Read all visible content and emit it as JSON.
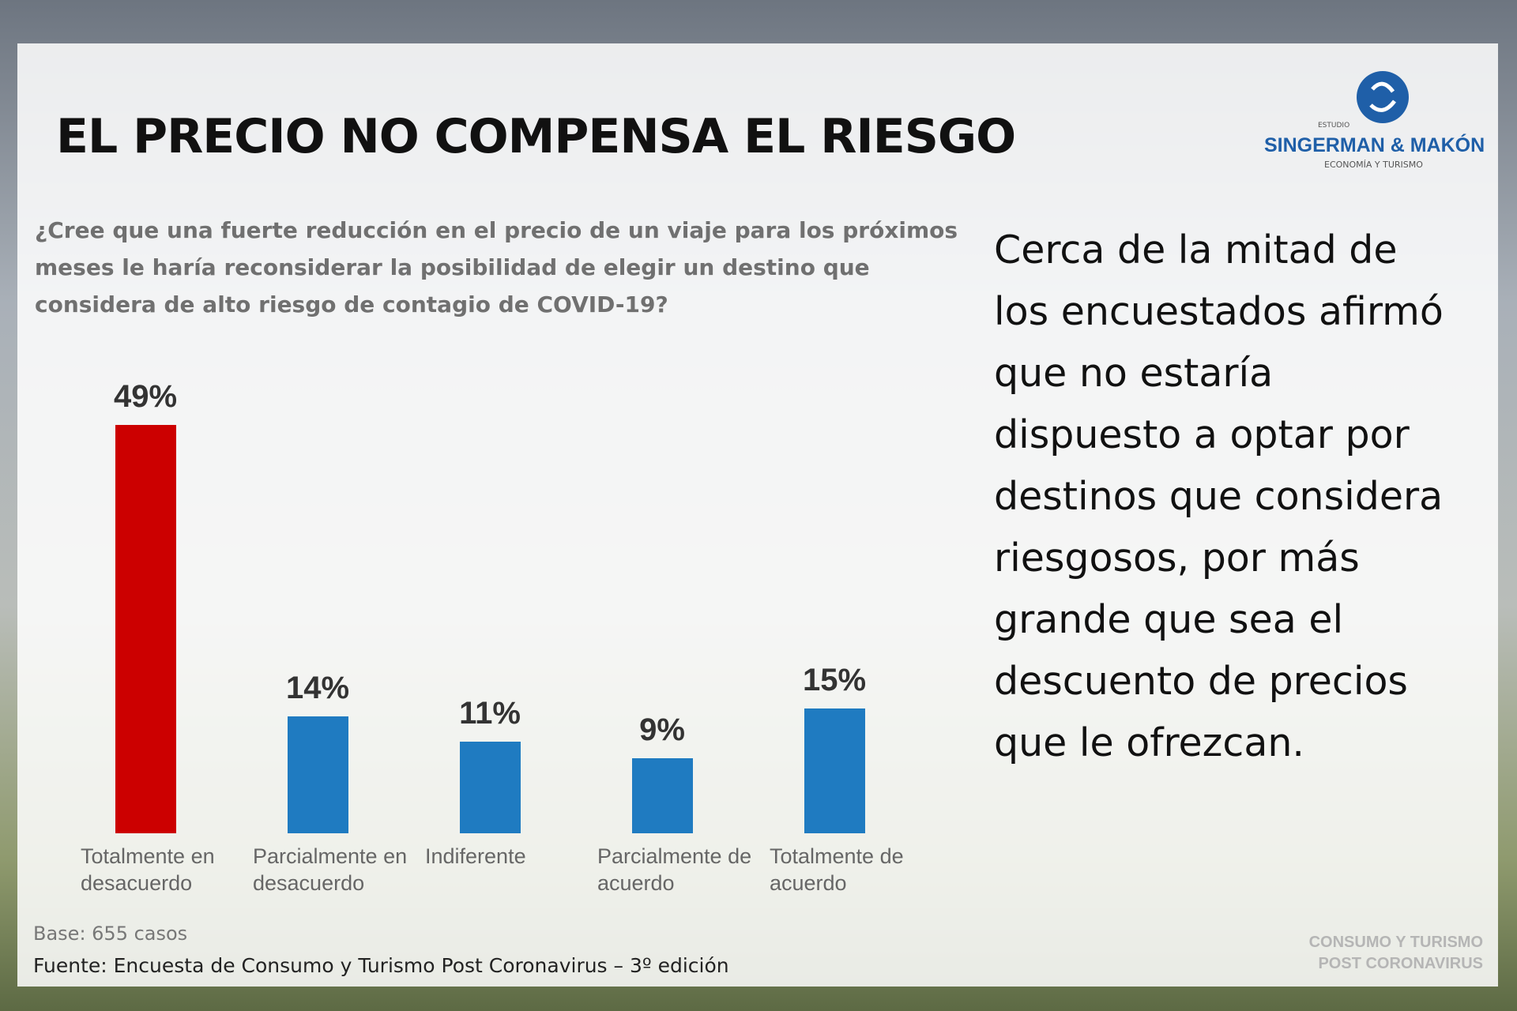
{
  "slide": {
    "logo": {
      "prefix": "ESTUDIO",
      "name": "SINGERMAN & MAKÓN",
      "tagline": "ECONOMÍA Y TURISMO"
    },
    "summary": "Cerca de la mitad de los encuestados afirmó que no estaría dispuesto a optar por destinos que considera riesgosos, por más grande que sea el descuento de precios que le ofrezcan.",
    "base": "Base: 655 casos",
    "source": "Fuente: Encuesta de Consumo y Turismo Post Coronavirus – 3º edición",
    "footer": [
      "CONSUMO Y TURISMO",
      "POST CORONAVIRUS"
    ]
  },
  "chart_data": {
    "type": "bar",
    "title": "EL PRECIO NO COMPENSA EL RIESGO",
    "subtitle": "¿Cree que una fuerte reducción en el precio de un viaje para los próximos meses le haría reconsiderar la posibilidad de elegir un destino que considera de alto riesgo de contagio de COVID-19?",
    "categories": [
      "Totalmente en desacuerdo",
      "Parcialmente en desacuerdo",
      "Indiferente",
      "Parcialmente de acuerdo",
      "Totalmente de acuerdo"
    ],
    "values": [
      49,
      14,
      11,
      9,
      15
    ],
    "value_labels": [
      "49%",
      "14%",
      "11%",
      "9%",
      "15%"
    ],
    "colors": [
      "#cc0000",
      "#1f7bc1",
      "#1f7bc1",
      "#1f7bc1",
      "#1f7bc1"
    ]
  }
}
